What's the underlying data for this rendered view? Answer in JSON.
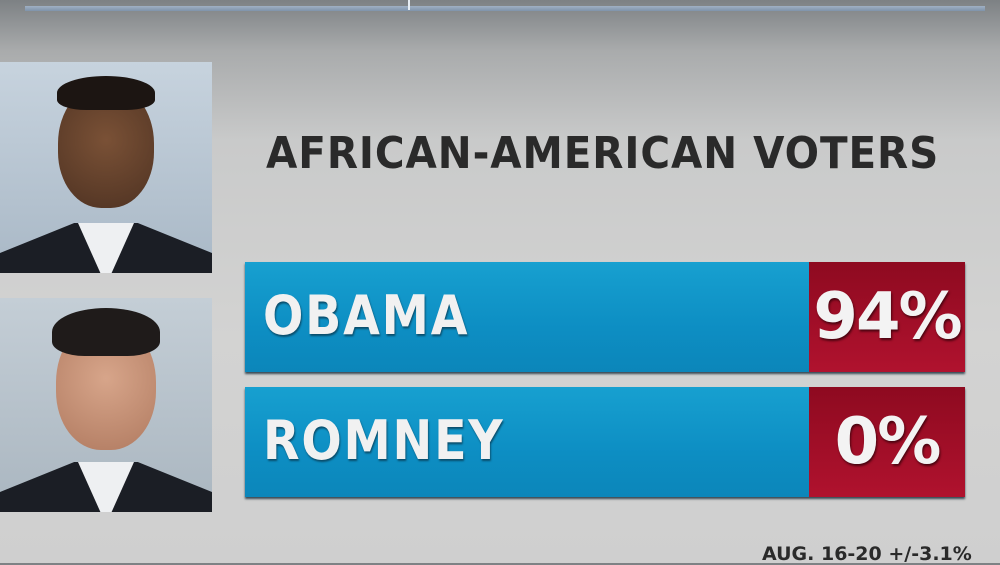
{
  "title": "AFRICAN-AMERICAN VOTERS",
  "colors": {
    "bar_blue": "#0d8ec3",
    "value_red": "#a50f28",
    "title_text": "#2a2a2a"
  },
  "candidates": [
    {
      "name": "OBAMA",
      "value": "94%",
      "photo": "obama-portrait"
    },
    {
      "name": "ROMNEY",
      "value": "0%",
      "photo": "romney-portrait"
    }
  ],
  "source_note": "AUG. 16-20 +/-3.1%"
}
